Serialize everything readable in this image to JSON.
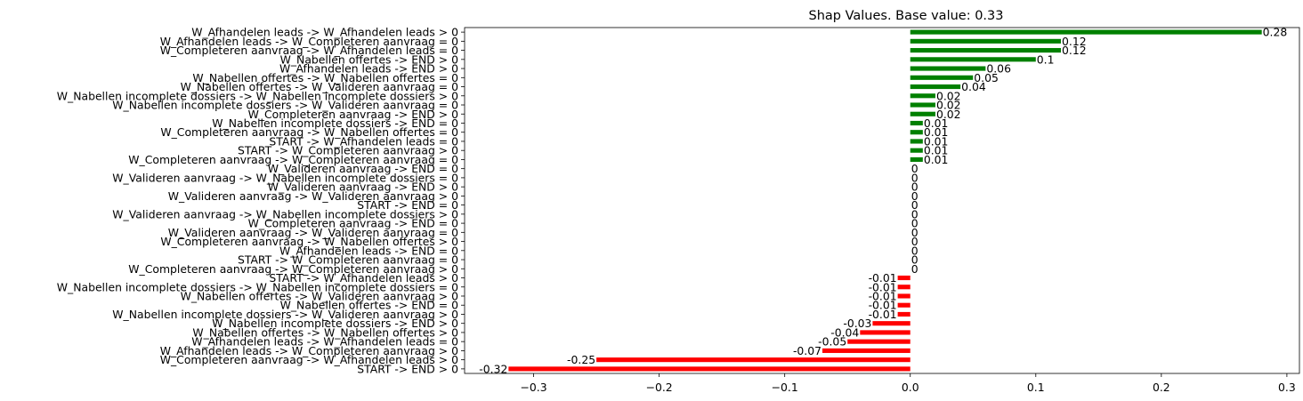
{
  "chart_data": {
    "type": "bar",
    "orientation": "horizontal",
    "title": "Shap Values. Base value: 0.33",
    "xlabel": "",
    "ylabel": "",
    "xlim": [
      -0.355,
      0.31
    ],
    "xticks": [
      -0.3,
      -0.2,
      -0.1,
      0.0,
      0.1,
      0.2,
      0.3
    ],
    "xtick_labels": [
      "−0.3",
      "−0.2",
      "−0.1",
      "0.0",
      "0.1",
      "0.2",
      "0.3"
    ],
    "grid": false,
    "legend": "none",
    "colors": {
      "positive": "#008000",
      "negative": "#ff0000"
    },
    "categories": [
      "W_Afhandelen leads -> W_Afhandelen leads > 0",
      "W_Afhandelen leads -> W_Completeren aanvraag = 0",
      "W_Completeren aanvraag -> W_Afhandelen leads = 0",
      "W_Nabellen offertes -> END > 0",
      "W_Afhandelen leads -> END > 0",
      "W_Nabellen offertes -> W_Nabellen offertes = 0",
      "W_Nabellen offertes -> W_Valideren aanvraag = 0",
      "W_Nabellen incomplete dossiers -> W_Nabellen incomplete dossiers > 0",
      "W_Nabellen incomplete dossiers -> W_Valideren aanvraag = 0",
      "W_Completeren aanvraag -> END > 0",
      "W_Nabellen incomplete dossiers -> END = 0",
      "W_Completeren aanvraag -> W_Nabellen offertes = 0",
      "START -> W_Afhandelen leads = 0",
      "START -> W_Completeren aanvraag > 0",
      "W_Completeren aanvraag -> W_Completeren aanvraag = 0",
      "W_Valideren aanvraag -> END = 0",
      "W_Valideren aanvraag -> W_Nabellen incomplete dossiers = 0",
      "W_Valideren aanvraag -> END > 0",
      "W_Valideren aanvraag -> W_Valideren aanvraag > 0",
      "START -> END = 0",
      "W_Valideren aanvraag -> W_Nabellen incomplete dossiers > 0",
      "W_Completeren aanvraag -> END = 0",
      "W_Valideren aanvraag -> W_Valideren aanvraag = 0",
      "W_Completeren aanvraag -> W_Nabellen offertes > 0",
      "W_Afhandelen leads -> END = 0",
      "START -> W_Completeren aanvraag = 0",
      "W_Completeren aanvraag -> W_Completeren aanvraag > 0",
      "START -> W_Afhandelen leads > 0",
      "W_Nabellen incomplete dossiers -> W_Nabellen incomplete dossiers = 0",
      "W_Nabellen offertes -> W_Valideren aanvraag > 0",
      "W_Nabellen offertes -> END = 0",
      "W_Nabellen incomplete dossiers -> W_Valideren aanvraag > 0",
      "W_Nabellen incomplete dossiers -> END > 0",
      "W_Nabellen offertes -> W_Nabellen offertes > 0",
      "W_Afhandelen leads -> W_Afhandelen leads = 0",
      "W_Afhandelen leads -> W_Completeren aanvraag > 0",
      "W_Completeren aanvraag -> W_Afhandelen leads > 0",
      "START -> END > 0"
    ],
    "values": [
      0.28,
      0.12,
      0.12,
      0.1,
      0.06,
      0.05,
      0.04,
      0.02,
      0.02,
      0.02,
      0.01,
      0.01,
      0.01,
      0.01,
      0.01,
      0,
      0,
      0,
      0,
      0,
      0,
      0,
      0,
      0,
      0,
      0,
      0,
      -0.01,
      -0.01,
      -0.01,
      -0.01,
      -0.01,
      -0.03,
      -0.04,
      -0.05,
      -0.07,
      -0.25,
      -0.32
    ],
    "value_labels": [
      "0.28",
      "0.12",
      "0.12",
      "0.1",
      "0.06",
      "0.05",
      "0.04",
      "0.02",
      "0.02",
      "0.02",
      "0.01",
      "0.01",
      "0.01",
      "0.01",
      "0.01",
      "0",
      "0",
      "0",
      "0",
      "0",
      "0",
      "0",
      "0",
      "0",
      "0",
      "0",
      "0",
      "-0.01",
      "-0.01",
      "-0.01",
      "-0.01",
      "-0.01",
      "-0.03",
      "-0.04",
      "-0.05",
      "-0.07",
      "-0.25",
      "-0.32"
    ]
  }
}
